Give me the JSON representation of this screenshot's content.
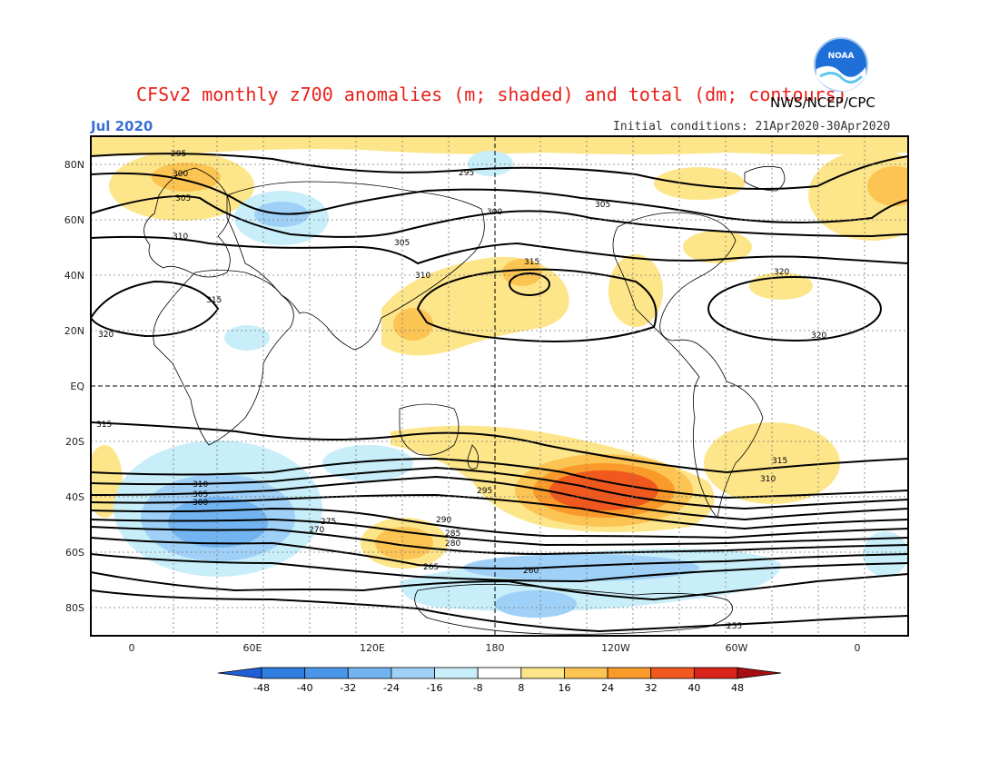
{
  "title": "CFSv2 monthly z700 anomalies (m; shaded) and total (dm; contours)",
  "period": "Jul 2020",
  "agency": "NWS/NCEP/CPC",
  "initial_conditions": "Initial conditions: 21Apr2020-30Apr2020",
  "logo_text": "NOAA",
  "map": {
    "lat_labels": [
      "80N",
      "60N",
      "40N",
      "20N",
      "EQ",
      "20S",
      "40S",
      "60S",
      "80S"
    ],
    "lon_labels": [
      "0",
      "60E",
      "120E",
      "180",
      "120W",
      "60W",
      "0"
    ],
    "contour_labels": [
      "295",
      "300",
      "305",
      "310",
      "315",
      "320",
      "295",
      "300",
      "305",
      "310",
      "315",
      "320",
      "315",
      "310",
      "305",
      "300",
      "295",
      "290",
      "285",
      "280",
      "275",
      "270",
      "265",
      "260",
      "255",
      "305",
      "310",
      "315",
      "320"
    ]
  },
  "colorbar": {
    "ticks": [
      "-48",
      "-40",
      "-32",
      "-24",
      "-16",
      "-8",
      "8",
      "16",
      "24",
      "32",
      "40",
      "48"
    ],
    "colors": [
      "#1f5fd8",
      "#2f7fe0",
      "#4a97ea",
      "#72b4f2",
      "#9fd0f7",
      "#c8eef9",
      "#ffffff",
      "#fde58a",
      "#fcc453",
      "#f99a2b",
      "#f0581e",
      "#d8241a",
      "#a60f12"
    ]
  }
}
